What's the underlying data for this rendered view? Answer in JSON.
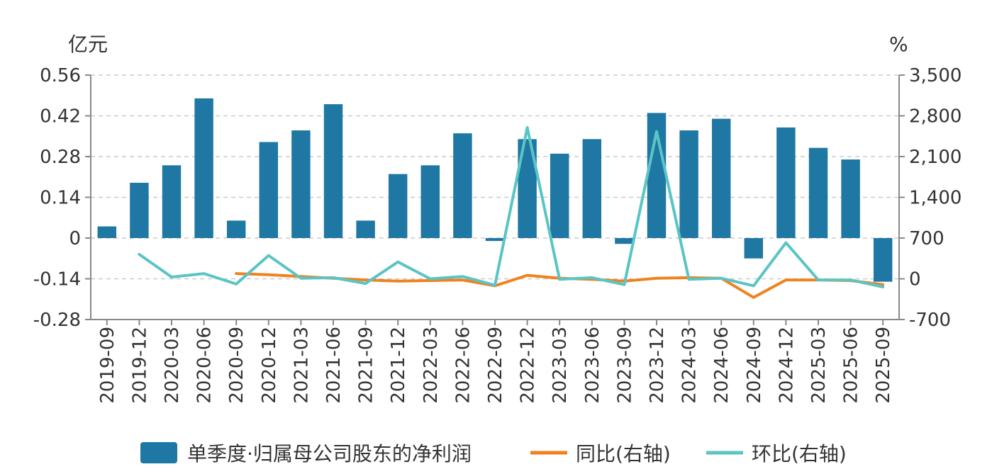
{
  "chart_data": {
    "type": "bar",
    "categories": [
      "2019-09",
      "2019-12",
      "2020-03",
      "2020-06",
      "2020-09",
      "2020-12",
      "2021-03",
      "2021-06",
      "2021-09",
      "2021-12",
      "2022-03",
      "2022-06",
      "2022-09",
      "2022-12",
      "2023-03",
      "2023-06",
      "2023-09",
      "2023-12",
      "2024-03",
      "2024-06",
      "2024-09",
      "2024-12",
      "2025-03",
      "2025-06",
      "2025-09"
    ],
    "left_axis": {
      "unit": "亿元",
      "ylim": [
        -0.28,
        0.56
      ],
      "ticks": [
        "0.56",
        "0.42",
        "0.28",
        "0.14",
        "0",
        "-0.14",
        "-0.28"
      ],
      "tick_values": [
        0.56,
        0.42,
        0.28,
        0.14,
        0,
        -0.14,
        -0.28
      ]
    },
    "right_axis": {
      "unit": "%",
      "ylim": [
        -700,
        3500
      ],
      "ticks": [
        "3,500",
        "2,800",
        "2,100",
        "1,400",
        "700",
        "0",
        "-700"
      ],
      "tick_values": [
        3500,
        2800,
        2100,
        1400,
        700,
        0,
        -700
      ]
    },
    "grid": true,
    "legend_position": "bottom",
    "series": [
      {
        "name": "单季度·归属母公司股东的净利润",
        "type": "bar",
        "axis": "left",
        "color": "#1f77a4",
        "values": [
          0.04,
          0.19,
          0.25,
          0.48,
          0.06,
          0.33,
          0.37,
          0.46,
          0.06,
          0.22,
          0.25,
          0.36,
          -0.01,
          0.34,
          0.29,
          0.34,
          -0.02,
          0.43,
          0.37,
          0.41,
          -0.07,
          0.38,
          0.31,
          0.27,
          -0.15
        ]
      },
      {
        "name": "同比(右轴)",
        "type": "line",
        "axis": "right",
        "color": "#f0821e",
        "values": [
          null,
          null,
          null,
          null,
          90,
          70,
          40,
          10,
          -20,
          -40,
          -30,
          -20,
          -120,
          60,
          10,
          -10,
          -40,
          10,
          20,
          10,
          -320,
          -20,
          -20,
          -30,
          -100
        ]
      },
      {
        "name": "环比(右轴)",
        "type": "line",
        "axis": "right",
        "color": "#5bc4c4",
        "values": [
          null,
          420,
          30,
          90,
          -90,
          400,
          10,
          20,
          -80,
          290,
          0,
          40,
          -110,
          2600,
          -10,
          20,
          -100,
          2530,
          -10,
          10,
          -120,
          620,
          -20,
          -20,
          -140
        ]
      }
    ]
  }
}
